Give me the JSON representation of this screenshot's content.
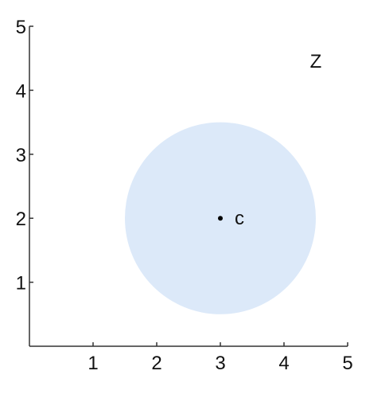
{
  "chart_data": {
    "type": "scatter",
    "title": "",
    "xlabel": "",
    "ylabel": "",
    "xlim": [
      0,
      5
    ],
    "ylim": [
      0,
      5
    ],
    "grid": false,
    "x_ticks": [
      1,
      2,
      3,
      4,
      5
    ],
    "y_ticks": [
      1,
      2,
      3,
      4,
      5
    ],
    "points": [
      {
        "x": 3,
        "y": 2,
        "label": "c"
      }
    ],
    "shapes": [
      {
        "type": "circle",
        "center": [
          3,
          2
        ],
        "radius": 1.5,
        "fill": "#dce9f9"
      }
    ],
    "annotations": [
      {
        "text": "Z",
        "x": 4.5,
        "y": 4.45
      }
    ]
  }
}
